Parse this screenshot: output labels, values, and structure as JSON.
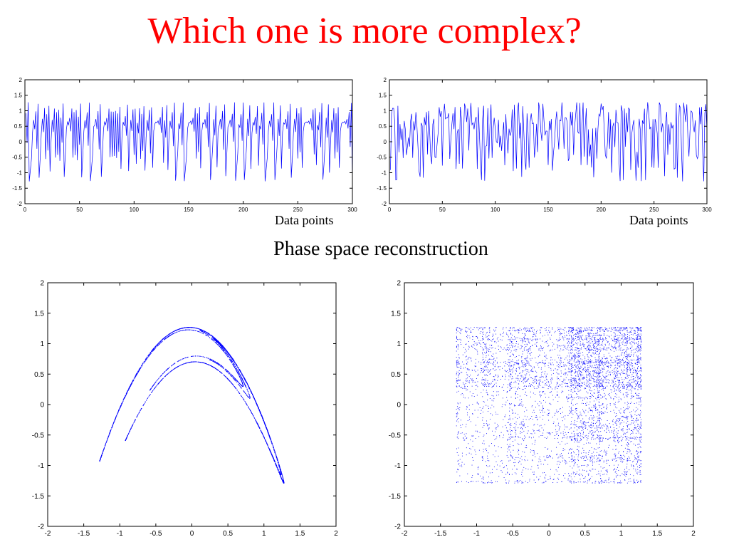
{
  "slide": {
    "title": "Which one is more complex?",
    "section_heading": "Phase space reconstruction"
  },
  "colors": {
    "title": "#ff0000",
    "series": "#0000ff",
    "axis": "#000000"
  },
  "chart_data": [
    {
      "id": "ts-left",
      "type": "line",
      "xlabel": "Data points",
      "xlim": [
        0,
        300
      ],
      "ylim": [
        -2,
        2
      ],
      "xticks": [
        0,
        50,
        100,
        150,
        200,
        250,
        300
      ],
      "yticks": [
        -2,
        -1.5,
        -1,
        -0.5,
        0,
        0.5,
        1,
        1.5,
        2
      ],
      "series": [
        {
          "generator": "henon",
          "a": 1.4,
          "b": 0.3,
          "n": 300,
          "component": "x"
        }
      ]
    },
    {
      "id": "ts-right",
      "type": "line",
      "xlabel": "Data points",
      "xlim": [
        0,
        300
      ],
      "ylim": [
        -2,
        2
      ],
      "xticks": [
        0,
        50,
        100,
        150,
        200,
        250,
        300
      ],
      "yticks": [
        -2,
        -1.5,
        -1,
        -0.5,
        0,
        0.5,
        1,
        1.5,
        2
      ],
      "series": [
        {
          "generator": "shuffled-henon",
          "n": 300,
          "component": "x"
        }
      ]
    },
    {
      "id": "phase-left",
      "type": "scatter",
      "xlim": [
        -2,
        2
      ],
      "ylim": [
        -2,
        2
      ],
      "xticks": [
        -2,
        -1.5,
        -1,
        -0.5,
        0,
        0.5,
        1,
        1.5,
        2
      ],
      "yticks": [
        -2,
        -1.5,
        -1,
        -0.5,
        0,
        0.5,
        1,
        1.5,
        2
      ],
      "series": [
        {
          "generator": "henon",
          "a": 1.4,
          "b": 0.3,
          "n": 5000,
          "embedding": "x(t) vs x(t+1)"
        }
      ]
    },
    {
      "id": "phase-right",
      "type": "scatter",
      "xlim": [
        -2,
        2
      ],
      "ylim": [
        -2,
        2
      ],
      "xticks": [
        -2,
        -1.5,
        -1,
        -0.5,
        0,
        0.5,
        1,
        1.5,
        2
      ],
      "yticks": [
        -2,
        -1.5,
        -1,
        -0.5,
        0,
        0.5,
        1,
        1.5,
        2
      ],
      "series": [
        {
          "generator": "shuffled-henon",
          "n": 5000,
          "embedding": "x(t) vs x(t+1)"
        }
      ]
    }
  ]
}
